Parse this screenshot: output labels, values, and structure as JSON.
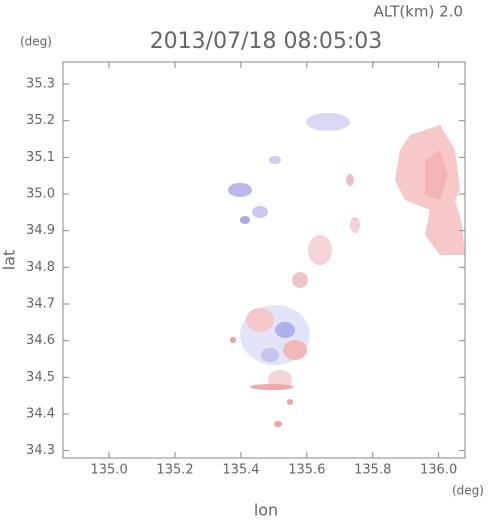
{
  "chart_data": {
    "type": "map",
    "title": "2013/07/18 08:05:03",
    "annotation": "ALT(km) 2.0",
    "x_label": "lon",
    "x_unit": "(deg)",
    "y_label": "lat",
    "y_unit": "(deg)",
    "xlim": [
      134.86,
      136.08
    ],
    "xticks": [
      {
        "value": 135.0,
        "label": "135.0"
      },
      135.2,
      135.4,
      135.6,
      135.8,
      {
        "value": 136.0,
        "label": "136.0"
      }
    ],
    "ylim": [
      34.28,
      35.36
    ],
    "yticks": [
      34.3,
      34.4,
      34.5,
      34.6,
      34.7,
      34.8,
      34.9,
      {
        "value": 35.0,
        "label": "35.0"
      },
      35.1,
      35.2,
      35.3
    ]
  }
}
